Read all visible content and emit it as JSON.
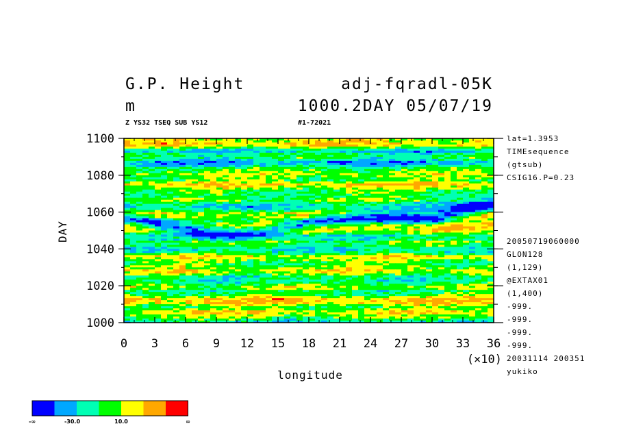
{
  "header": {
    "title_left": "G.P. Height",
    "title_right": "adj-fqradl-05K",
    "unit": "m",
    "time_info": "1000.2DAY 05/07/19",
    "sub_left": "Z YS32 TSEQ SUB YS12",
    "sub_right": "#1-72021"
  },
  "side_notes": {
    "top": [
      "lat=1.3953",
      "TIMEsequence",
      "(gtsub)",
      "CSIG16.P=0.23"
    ],
    "bottom": [
      "20050719060000",
      "GLON128",
      "(1,129)",
      "@EXTAX01",
      "(1,400)",
      "-999.",
      "-999.",
      "-999.",
      "-999.",
      "20031114 200351",
      "yukiko"
    ]
  },
  "chart_data": {
    "type": "heatmap",
    "xlabel": "longitude",
    "ylabel": "DAY",
    "x_multiplier_label": "(×10)",
    "x_ticks": [
      "0",
      "3",
      "6",
      "9",
      "12",
      "15",
      "18",
      "21",
      "24",
      "27",
      "30",
      "33",
      "36"
    ],
    "y_ticks": [
      "1000",
      "1020",
      "1040",
      "1060",
      "1080",
      "1100"
    ],
    "xlim": [
      0,
      36
    ],
    "ylim": [
      1000,
      1100
    ],
    "colorbar": {
      "colors": [
        "#0000ff",
        "#00a8ff",
        "#00ffb4",
        "#00ff00",
        "#ffff00",
        "#ffa800",
        "#ff0000"
      ],
      "labels": [
        "-∞",
        "-30.0",
        "10.0",
        "∞"
      ]
    },
    "dominant_features": [
      {
        "description": "blue band",
        "day_at_x0": 1060,
        "day_at_x36": 1060,
        "dip_center_x": 10.5,
        "dip_day": 1043
      }
    ]
  }
}
